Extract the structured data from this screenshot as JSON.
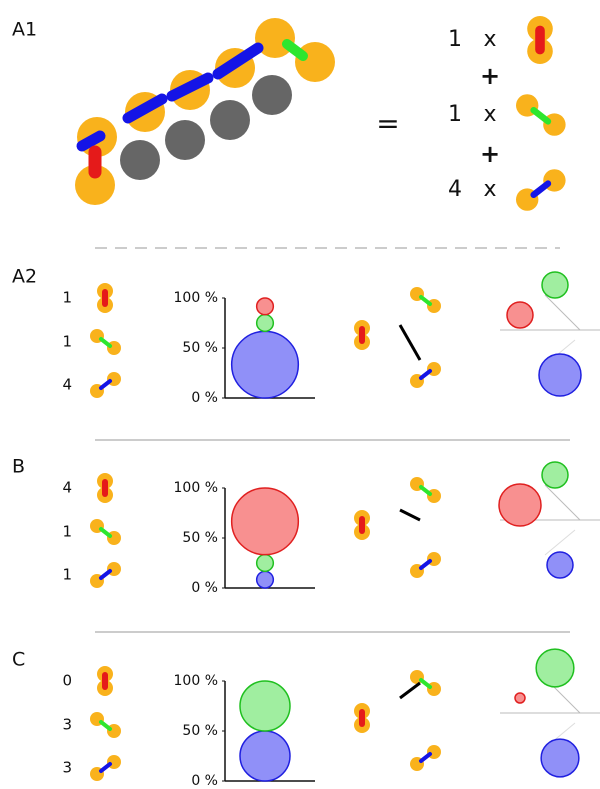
{
  "panel_a1": {
    "label": "A1",
    "equals": "=",
    "terms": [
      {
        "count": 1,
        "times": "x"
      },
      {
        "count": 1,
        "times": "x"
      },
      {
        "count": 4,
        "times": "x"
      }
    ],
    "plus": [
      "+",
      "+"
    ]
  },
  "panels": [
    {
      "label": "A2",
      "counts": [
        1,
        1,
        4
      ],
      "axis_ticks": [
        {
          "value": 100,
          "label": "100 %"
        },
        {
          "value": 50,
          "label": "50 %"
        },
        {
          "value": 0,
          "label": "0 %"
        }
      ]
    },
    {
      "label": "B",
      "counts": [
        4,
        1,
        1
      ],
      "axis_ticks": [
        {
          "value": 100,
          "label": "100 %"
        },
        {
          "value": 50,
          "label": "50 %"
        },
        {
          "value": 0,
          "label": "0 %"
        }
      ]
    },
    {
      "label": "C",
      "counts": [
        0,
        3,
        3
      ],
      "axis_ticks": [
        {
          "value": 100,
          "label": "100 %"
        },
        {
          "value": 50,
          "label": "50 %"
        },
        {
          "value": 0,
          "label": "0 %"
        }
      ]
    }
  ]
}
